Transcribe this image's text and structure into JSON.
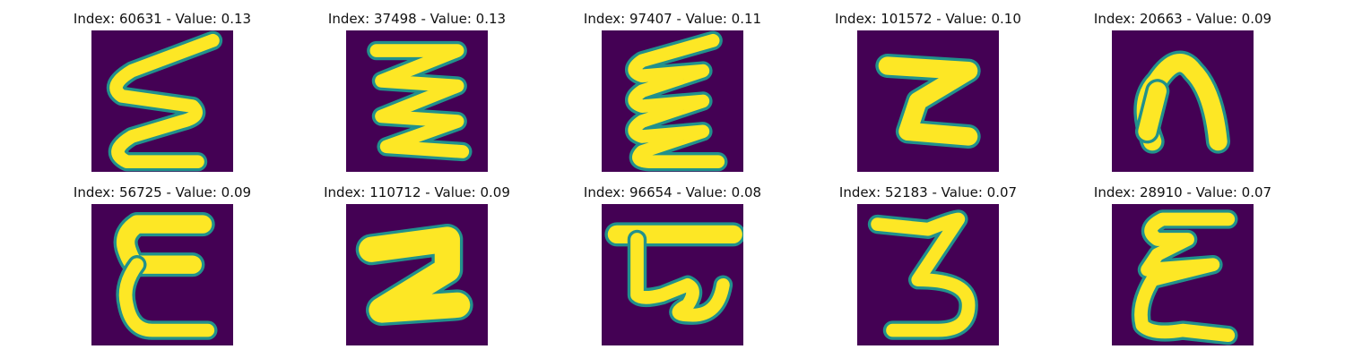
{
  "colors": {
    "background": "#440154",
    "low": "#3b528b",
    "mid": "#21918c",
    "high": "#fde725"
  },
  "panels": [
    {
      "index": "60631",
      "value": "0.13",
      "title": "Index: 60631 - Value: 0.13",
      "glyph": "zigzag-e-icon"
    },
    {
      "index": "37498",
      "value": "0.13",
      "title": "Index: 37498 - Value: 0.13",
      "glyph": "triple-zigzag-icon"
    },
    {
      "index": "97407",
      "value": "0.11",
      "title": "Index: 97407 - Value: 0.11",
      "glyph": "zigzag-e-icon"
    },
    {
      "index": "101572",
      "value": "0.10",
      "title": "Index: 101572 - Value: 0.10",
      "glyph": "z-shape-icon"
    },
    {
      "index": "20663",
      "value": "0.09",
      "title": "Index: 20663 - Value: 0.09",
      "glyph": "arch-n-icon"
    },
    {
      "index": "56725",
      "value": "0.09",
      "title": "Index: 56725 - Value: 0.09",
      "glyph": "letter-e-icon"
    },
    {
      "index": "110712",
      "value": "0.09",
      "title": "Index: 110712 - Value: 0.09",
      "glyph": "thick-2-icon"
    },
    {
      "index": "96654",
      "value": "0.08",
      "title": "Index: 96654 - Value: 0.08",
      "glyph": "bar-loop-icon"
    },
    {
      "index": "52183",
      "value": "0.07",
      "title": "Index: 52183 - Value: 0.07",
      "glyph": "digit-3-icon"
    },
    {
      "index": "28910",
      "value": "0.07",
      "title": "Index: 28910 - Value: 0.07",
      "glyph": "curly-e-icon"
    }
  ]
}
